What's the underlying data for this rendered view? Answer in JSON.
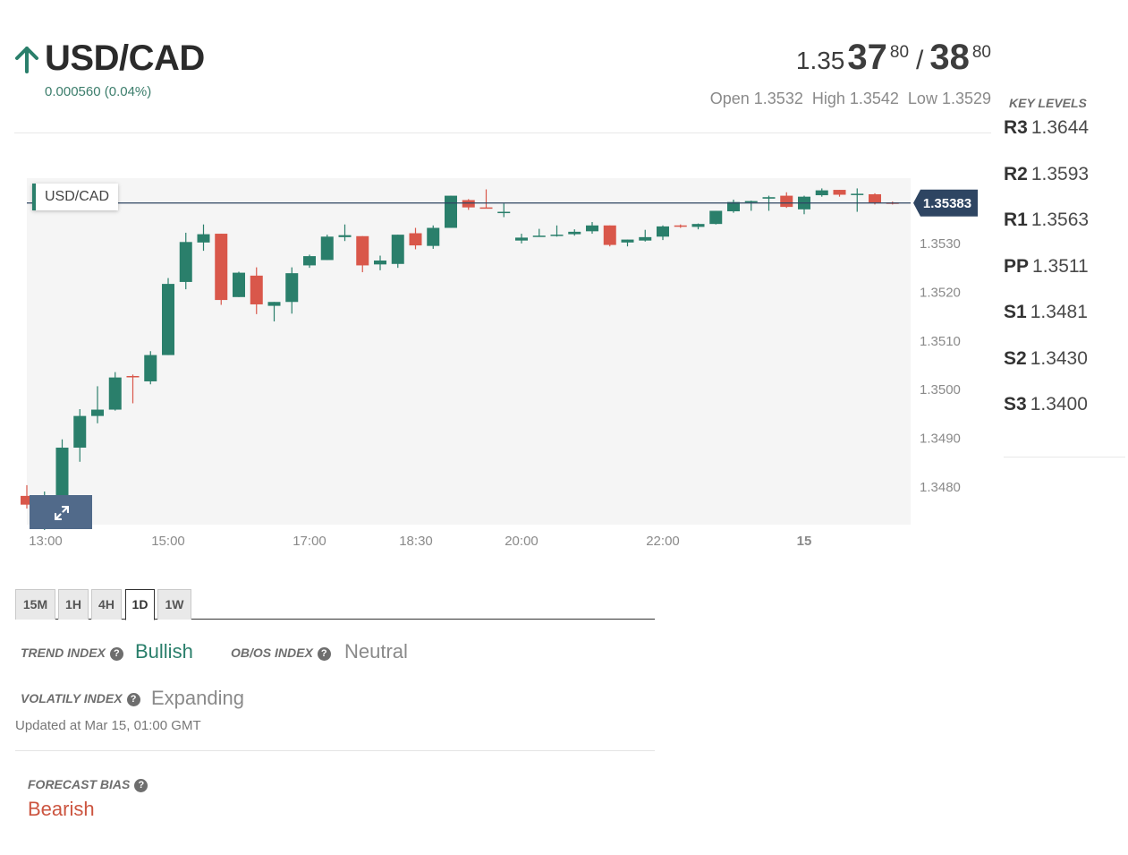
{
  "header": {
    "pair": "USD/CAD",
    "change": "0.000560 (0.04%)",
    "direction": "up",
    "quote": {
      "bid_base": "1.35",
      "bid_big": "37",
      "bid_small": "80",
      "separator": "/",
      "ask_big": "38",
      "ask_small": "80"
    },
    "ohl": {
      "open": "Open 1.3532",
      "high": "High 1.3542",
      "low": "Low 1.3529"
    }
  },
  "chart": {
    "pair_tag": "USD/CAD",
    "expand_icon": "expand-arrows-icon",
    "colors": {
      "up": "#2a7f6b",
      "down": "#d9574a",
      "price_tag": "#2e4562",
      "background": "#f5f5f5"
    }
  },
  "chart_data": {
    "type": "candlestick",
    "title": "",
    "series_name": "USD/CAD",
    "current_price": 1.35383,
    "current_price_label": "1.35383",
    "y_ticks": [
      "1.3530",
      "1.3520",
      "1.3510",
      "1.3500",
      "1.3490",
      "1.3480"
    ],
    "x_ticks": [
      "13:00",
      "15:00",
      "17:00",
      "18:30",
      "20:00",
      "22:00",
      "15"
    ],
    "ylim": [
      1.34723,
      1.35434
    ],
    "grid": false,
    "candles": [
      {
        "o": 1.34782,
        "h": 1.34804,
        "l": 1.34756,
        "c": 1.34764
      },
      {
        "o": 1.34764,
        "h": 1.34791,
        "l": 1.34712,
        "c": 1.34768
      },
      {
        "o": 1.34768,
        "h": 1.34898,
        "l": 1.34768,
        "c": 1.34881
      },
      {
        "o": 1.34881,
        "h": 1.3496,
        "l": 1.34852,
        "c": 1.34946
      },
      {
        "o": 1.34946,
        "h": 1.35007,
        "l": 1.34931,
        "c": 1.34959
      },
      {
        "o": 1.34959,
        "h": 1.35036,
        "l": 1.34957,
        "c": 1.35025
      },
      {
        "o": 1.35028,
        "h": 1.35031,
        "l": 1.34972,
        "c": 1.35026
      },
      {
        "o": 1.35017,
        "h": 1.35079,
        "l": 1.35011,
        "c": 1.35071
      },
      {
        "o": 1.35071,
        "h": 1.35229,
        "l": 1.35071,
        "c": 1.35217
      },
      {
        "o": 1.35221,
        "h": 1.35322,
        "l": 1.35206,
        "c": 1.35303
      },
      {
        "o": 1.35302,
        "h": 1.35339,
        "l": 1.35285,
        "c": 1.35319
      },
      {
        "o": 1.3532,
        "h": 1.3532,
        "l": 1.35174,
        "c": 1.35184
      },
      {
        "o": 1.3519,
        "h": 1.35242,
        "l": 1.3519,
        "c": 1.3524
      },
      {
        "o": 1.35234,
        "h": 1.35251,
        "l": 1.35155,
        "c": 1.35175
      },
      {
        "o": 1.35172,
        "h": 1.3518,
        "l": 1.3514,
        "c": 1.3518
      },
      {
        "o": 1.3518,
        "h": 1.35251,
        "l": 1.35156,
        "c": 1.35239
      },
      {
        "o": 1.35255,
        "h": 1.35277,
        "l": 1.3525,
        "c": 1.35274
      },
      {
        "o": 1.35266,
        "h": 1.35318,
        "l": 1.35266,
        "c": 1.35314
      },
      {
        "o": 1.35313,
        "h": 1.35339,
        "l": 1.35305,
        "c": 1.35317
      },
      {
        "o": 1.35315,
        "h": 1.35315,
        "l": 1.35241,
        "c": 1.35255
      },
      {
        "o": 1.35257,
        "h": 1.35275,
        "l": 1.35245,
        "c": 1.35265
      },
      {
        "o": 1.35258,
        "h": 1.35318,
        "l": 1.3525,
        "c": 1.35318
      },
      {
        "o": 1.35321,
        "h": 1.35332,
        "l": 1.35288,
        "c": 1.35296
      },
      {
        "o": 1.35295,
        "h": 1.35337,
        "l": 1.35289,
        "c": 1.35332
      },
      {
        "o": 1.35332,
        "h": 1.35398,
        "l": 1.35332,
        "c": 1.35398
      },
      {
        "o": 1.35389,
        "h": 1.35391,
        "l": 1.35369,
        "c": 1.35374
      },
      {
        "o": 1.35374,
        "h": 1.35411,
        "l": 1.35372,
        "c": 1.35372
      },
      {
        "o": 1.35365,
        "h": 1.35382,
        "l": 1.35354,
        "c": 1.35365
      },
      {
        "o": 1.35306,
        "h": 1.3532,
        "l": 1.353,
        "c": 1.35312
      },
      {
        "o": 1.35314,
        "h": 1.3533,
        "l": 1.35314,
        "c": 1.35316
      },
      {
        "o": 1.35316,
        "h": 1.35337,
        "l": 1.35314,
        "c": 1.35318
      },
      {
        "o": 1.35319,
        "h": 1.35329,
        "l": 1.35316,
        "c": 1.35324
      },
      {
        "o": 1.35325,
        "h": 1.35344,
        "l": 1.3532,
        "c": 1.35337
      },
      {
        "o": 1.35337,
        "h": 1.35337,
        "l": 1.35294,
        "c": 1.35297
      },
      {
        "o": 1.35302,
        "h": 1.35308,
        "l": 1.35294,
        "c": 1.35308
      },
      {
        "o": 1.35306,
        "h": 1.35328,
        "l": 1.35304,
        "c": 1.35313
      },
      {
        "o": 1.35314,
        "h": 1.35337,
        "l": 1.35307,
        "c": 1.35335
      },
      {
        "o": 1.35337,
        "h": 1.35339,
        "l": 1.35332,
        "c": 1.35335
      },
      {
        "o": 1.35334,
        "h": 1.35341,
        "l": 1.35329,
        "c": 1.3534
      },
      {
        "o": 1.3534,
        "h": 1.35367,
        "l": 1.35339,
        "c": 1.35367
      },
      {
        "o": 1.35366,
        "h": 1.3539,
        "l": 1.35363,
        "c": 1.35385
      },
      {
        "o": 1.35387,
        "h": 1.35388,
        "l": 1.35367,
        "c": 1.35387
      },
      {
        "o": 1.35392,
        "h": 1.35398,
        "l": 1.35367,
        "c": 1.35395
      },
      {
        "o": 1.35398,
        "h": 1.35405,
        "l": 1.35373,
        "c": 1.35375
      },
      {
        "o": 1.3537,
        "h": 1.35398,
        "l": 1.3536,
        "c": 1.35396
      },
      {
        "o": 1.35399,
        "h": 1.35413,
        "l": 1.35396,
        "c": 1.35409
      },
      {
        "o": 1.3541,
        "h": 1.3541,
        "l": 1.35396,
        "c": 1.354
      },
      {
        "o": 1.35401,
        "h": 1.35413,
        "l": 1.35365,
        "c": 1.35402
      },
      {
        "o": 1.35401,
        "h": 1.35403,
        "l": 1.3538,
        "c": 1.35384
      },
      {
        "o": 1.35384,
        "h": 1.35386,
        "l": 1.3538,
        "c": 1.35383
      }
    ]
  },
  "key_levels": {
    "title": "KEY LEVELS",
    "items": [
      {
        "label": "R3",
        "value": "1.3644"
      },
      {
        "label": "R2",
        "value": "1.3593"
      },
      {
        "label": "R1",
        "value": "1.3563"
      },
      {
        "label": "PP",
        "value": "1.3511"
      },
      {
        "label": "S1",
        "value": "1.3481"
      },
      {
        "label": "S2",
        "value": "1.3430"
      },
      {
        "label": "S3",
        "value": "1.3400"
      }
    ]
  },
  "tabs": [
    {
      "label": "15M",
      "active": false
    },
    {
      "label": "1H",
      "active": false
    },
    {
      "label": "4H",
      "active": false
    },
    {
      "label": "1D",
      "active": true
    },
    {
      "label": "1W",
      "active": false
    }
  ],
  "indexes": {
    "trend": {
      "label": "TREND INDEX",
      "value": "Bullish",
      "color": "#2a7f6b"
    },
    "obos": {
      "label": "OB/OS INDEX",
      "value": "Neutral",
      "color": "#8a8a8a"
    },
    "volatility": {
      "label": "VOLATILY INDEX",
      "value": "Expanding",
      "color": "#8a8a8a"
    },
    "help_icon": "question-circle-icon"
  },
  "updated_at": "Updated at Mar 15, 01:00 GMT",
  "forecast": {
    "label": "FORECAST BIAS",
    "value": "Bearish",
    "color": "#cc5540"
  }
}
